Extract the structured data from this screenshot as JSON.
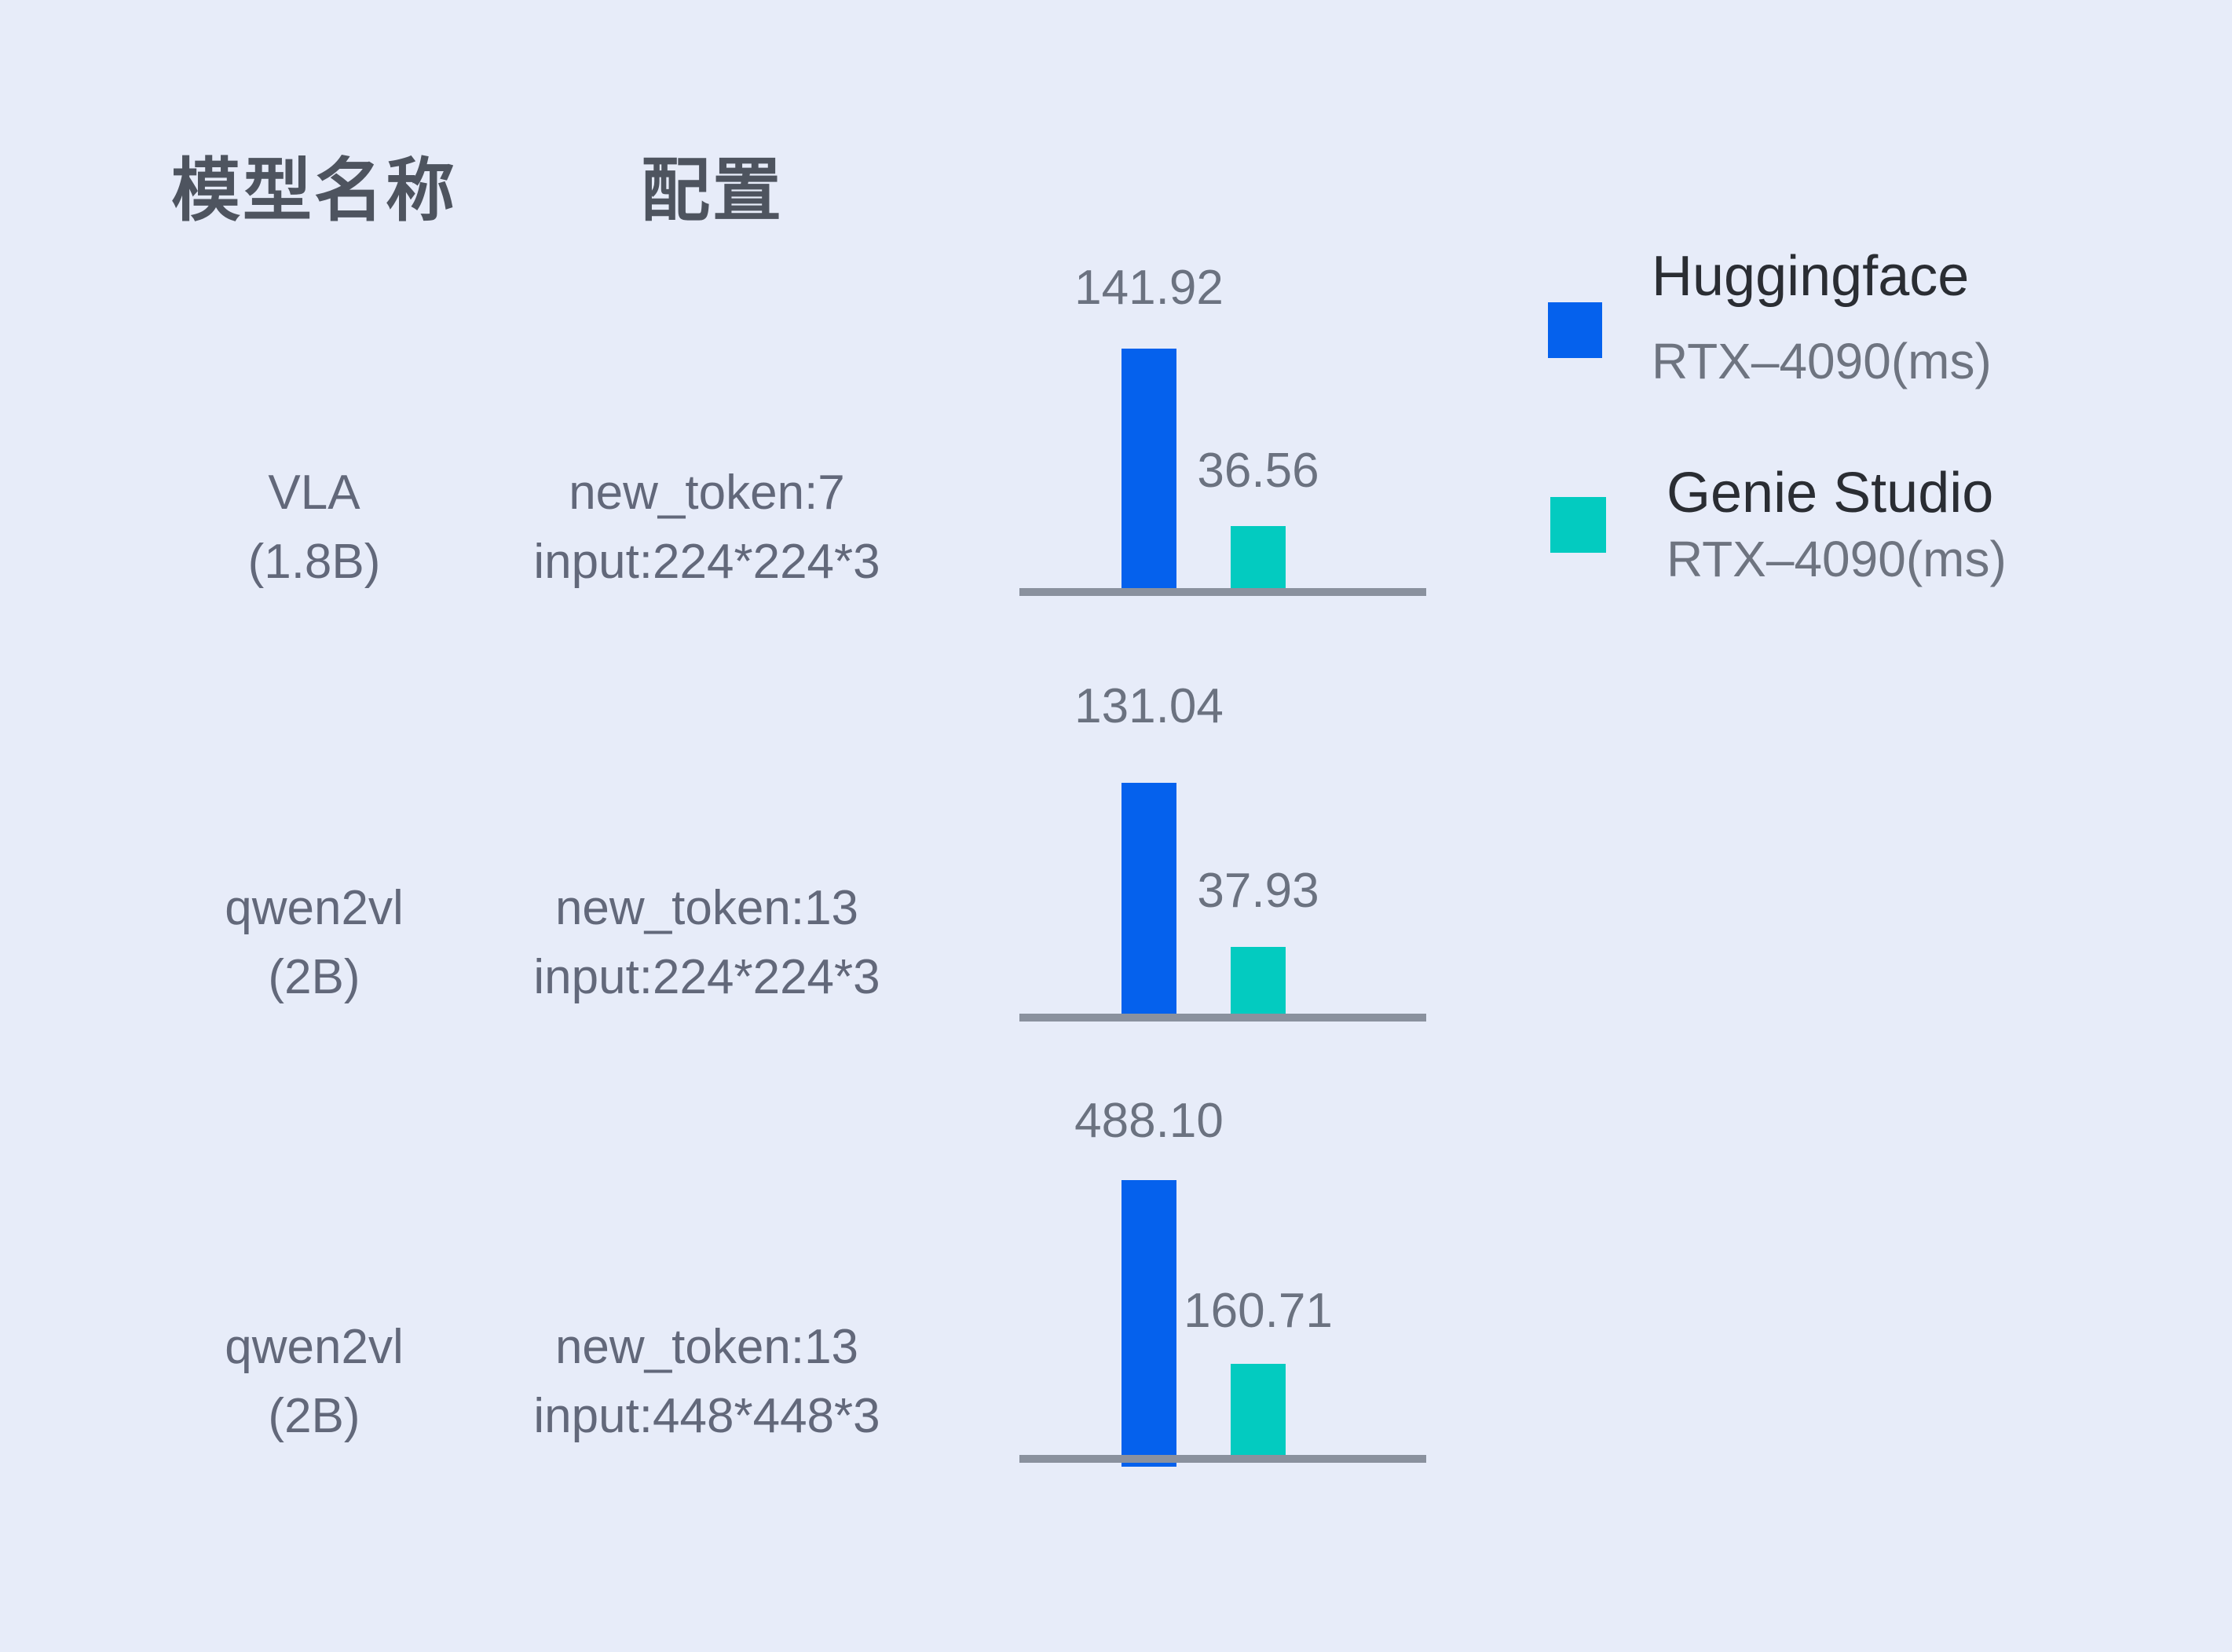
{
  "header": {
    "model_column": "模型名称",
    "config_column": "配置"
  },
  "rows": [
    {
      "model": "VLA",
      "size": "(1.8B)",
      "config_line1": "new_token:7",
      "config_line2": "input:224*224*3",
      "huggingface_ms": "141.92",
      "genie_ms": "36.56"
    },
    {
      "model": "qwen2vl",
      "size": "(2B)",
      "config_line1": "new_token:13",
      "config_line2": "input:224*224*3",
      "huggingface_ms": "131.04",
      "genie_ms": "37.93"
    },
    {
      "model": "qwen2vl",
      "size": "(2B)",
      "config_line1": "new_token:13",
      "config_line2": "input:448*448*3",
      "huggingface_ms": "488.10",
      "genie_ms": "160.71"
    }
  ],
  "legend": {
    "huggingface": {
      "title": "Huggingface",
      "subtitle": "RTX–4090(ms)"
    },
    "genie_studio": {
      "title": "Genie Studio",
      "subtitle": "RTX–4090(ms)"
    }
  },
  "colors": {
    "huggingface_bar": "#0561ED",
    "genie_bar": "#03CBC0",
    "baseline": "#8A919E",
    "background": "#E7ECF9",
    "header_text": "#4E545F",
    "label_text": "#62687A",
    "value_text": "#6B7280",
    "legend_title_text": "#2A2D33",
    "legend_subtitle_text": "#6E7480"
  },
  "chart_data": {
    "type": "bar",
    "unit": "ms",
    "title": "",
    "categories": [
      "VLA (1.8B) — new_token:7, input:224*224*3",
      "qwen2vl (2B) — new_token:13, input:224*224*3",
      "qwen2vl (2B) — new_token:13, input:448*448*3"
    ],
    "series": [
      {
        "name": "Huggingface RTX–4090(ms)",
        "color": "#0561ED",
        "values": [
          141.92,
          131.04,
          488.1
        ]
      },
      {
        "name": "Genie Studio RTX–4090(ms)",
        "color": "#03CBC0",
        "values": [
          36.56,
          37.93,
          160.71
        ]
      }
    ],
    "value_labels_shown": true,
    "axes": "no ticks — gray baseline only, one mini chart per row",
    "legend_position": "top-right",
    "grid": false
  }
}
